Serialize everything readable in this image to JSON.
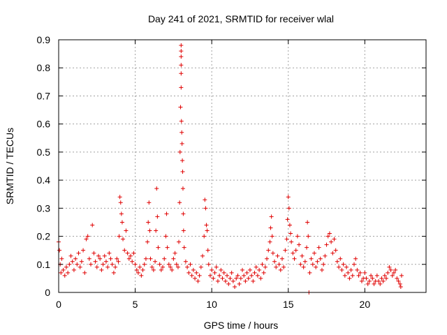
{
  "chart_data": {
    "type": "scatter",
    "title": "Day 241 of 2021, SRMTID for receiver wlal",
    "xlabel": "GPS time / hours",
    "ylabel": "SRMTID / TECUs",
    "xlim": [
      0,
      24
    ],
    "ylim": [
      0,
      0.9
    ],
    "xticks": [
      0,
      5,
      10,
      15,
      20
    ],
    "xtick_labels": [
      "0",
      "5",
      "10",
      "15",
      "20"
    ],
    "yticks": [
      0,
      0.1,
      0.2,
      0.3,
      0.4,
      0.5,
      0.6,
      0.7,
      0.8,
      0.9
    ],
    "ytick_labels": [
      "0",
      "0.1",
      "0.2",
      "0.3",
      "0.4",
      "0.5",
      "0.6",
      "0.7",
      "0.8",
      "0.9"
    ],
    "grid": true,
    "marker": "+",
    "series": [
      {
        "name": "SRMTID",
        "color": "#e00000",
        "points": [
          [
            0.0,
            0.18
          ],
          [
            0.05,
            0.15
          ],
          [
            0.1,
            0.1
          ],
          [
            0.15,
            0.07
          ],
          [
            0.2,
            0.12
          ],
          [
            0.3,
            0.08
          ],
          [
            0.4,
            0.06
          ],
          [
            0.5,
            0.09
          ],
          [
            0.6,
            0.07
          ],
          [
            0.7,
            0.1
          ],
          [
            0.8,
            0.13
          ],
          [
            0.9,
            0.11
          ],
          [
            1.0,
            0.08
          ],
          [
            1.1,
            0.12
          ],
          [
            1.2,
            0.1
          ],
          [
            1.3,
            0.14
          ],
          [
            1.4,
            0.09
          ],
          [
            1.5,
            0.11
          ],
          [
            1.6,
            0.15
          ],
          [
            1.7,
            0.07
          ],
          [
            1.8,
            0.19
          ],
          [
            1.9,
            0.2
          ],
          [
            2.0,
            0.12
          ],
          [
            2.1,
            0.1
          ],
          [
            2.2,
            0.24
          ],
          [
            2.3,
            0.14
          ],
          [
            2.4,
            0.11
          ],
          [
            2.5,
            0.09
          ],
          [
            2.6,
            0.13
          ],
          [
            2.7,
            0.12
          ],
          [
            2.8,
            0.08
          ],
          [
            2.9,
            0.1
          ],
          [
            3.0,
            0.13
          ],
          [
            3.1,
            0.11
          ],
          [
            3.2,
            0.09
          ],
          [
            3.3,
            0.14
          ],
          [
            3.4,
            0.12
          ],
          [
            3.5,
            0.1
          ],
          [
            3.6,
            0.07
          ],
          [
            3.7,
            0.09
          ],
          [
            3.8,
            0.12
          ],
          [
            3.9,
            0.11
          ],
          [
            3.95,
            0.2
          ],
          [
            4.0,
            0.34
          ],
          [
            4.05,
            0.32
          ],
          [
            4.1,
            0.28
          ],
          [
            4.15,
            0.25
          ],
          [
            4.2,
            0.19
          ],
          [
            4.3,
            0.15
          ],
          [
            4.4,
            0.22
          ],
          [
            4.5,
            0.14
          ],
          [
            4.6,
            0.12
          ],
          [
            4.7,
            0.13
          ],
          [
            4.8,
            0.11
          ],
          [
            4.9,
            0.14
          ],
          [
            5.0,
            0.1
          ],
          [
            5.1,
            0.08
          ],
          [
            5.2,
            0.07
          ],
          [
            5.3,
            0.09
          ],
          [
            5.4,
            0.06
          ],
          [
            5.5,
            0.08
          ],
          [
            5.6,
            0.1
          ],
          [
            5.7,
            0.12
          ],
          [
            5.8,
            0.18
          ],
          [
            5.85,
            0.25
          ],
          [
            5.9,
            0.32
          ],
          [
            5.95,
            0.22
          ],
          [
            6.0,
            0.12
          ],
          [
            6.1,
            0.09
          ],
          [
            6.2,
            0.08
          ],
          [
            6.3,
            0.11
          ],
          [
            6.35,
            0.22
          ],
          [
            6.4,
            0.37
          ],
          [
            6.45,
            0.27
          ],
          [
            6.5,
            0.16
          ],
          [
            6.6,
            0.1
          ],
          [
            6.7,
            0.08
          ],
          [
            6.8,
            0.09
          ],
          [
            6.9,
            0.12
          ],
          [
            7.0,
            0.2
          ],
          [
            7.05,
            0.28
          ],
          [
            7.1,
            0.16
          ],
          [
            7.2,
            0.1
          ],
          [
            7.3,
            0.09
          ],
          [
            7.4,
            0.08
          ],
          [
            7.5,
            0.12
          ],
          [
            7.6,
            0.14
          ],
          [
            7.7,
            0.1
          ],
          [
            7.8,
            0.09
          ],
          [
            7.85,
            0.18
          ],
          [
            7.9,
            0.32
          ],
          [
            7.93,
            0.5
          ],
          [
            7.96,
            0.66
          ],
          [
            8.0,
            0.73
          ],
          [
            8.0,
            0.78
          ],
          [
            8.0,
            0.81
          ],
          [
            8.0,
            0.84
          ],
          [
            8.0,
            0.86
          ],
          [
            8.0,
            0.88
          ],
          [
            8.02,
            0.61
          ],
          [
            8.04,
            0.57
          ],
          [
            8.06,
            0.53
          ],
          [
            8.08,
            0.47
          ],
          [
            8.1,
            0.43
          ],
          [
            8.12,
            0.37
          ],
          [
            8.14,
            0.28
          ],
          [
            8.16,
            0.22
          ],
          [
            8.2,
            0.16
          ],
          [
            8.3,
            0.11
          ],
          [
            8.4,
            0.09
          ],
          [
            8.5,
            0.07
          ],
          [
            8.6,
            0.1
          ],
          [
            8.7,
            0.06
          ],
          [
            8.8,
            0.08
          ],
          [
            8.9,
            0.05
          ],
          [
            9.0,
            0.07
          ],
          [
            9.1,
            0.04
          ],
          [
            9.2,
            0.06
          ],
          [
            9.3,
            0.09
          ],
          [
            9.4,
            0.13
          ],
          [
            9.5,
            0.2
          ],
          [
            9.55,
            0.33
          ],
          [
            9.6,
            0.3
          ],
          [
            9.65,
            0.24
          ],
          [
            9.7,
            0.22
          ],
          [
            9.75,
            0.15
          ],
          [
            9.8,
            0.1
          ],
          [
            9.9,
            0.06
          ],
          [
            10.0,
            0.08
          ],
          [
            10.1,
            0.05
          ],
          [
            10.2,
            0.07
          ],
          [
            10.3,
            0.09
          ],
          [
            10.4,
            0.04
          ],
          [
            10.5,
            0.06
          ],
          [
            10.6,
            0.08
          ],
          [
            10.7,
            0.05
          ],
          [
            10.8,
            0.07
          ],
          [
            10.9,
            0.04
          ],
          [
            11.0,
            0.06
          ],
          [
            11.1,
            0.03
          ],
          [
            11.2,
            0.05
          ],
          [
            11.3,
            0.07
          ],
          [
            11.4,
            0.04
          ],
          [
            11.5,
            0.02
          ],
          [
            11.6,
            0.05
          ],
          [
            11.7,
            0.06
          ],
          [
            11.8,
            0.03
          ],
          [
            11.9,
            0.05
          ],
          [
            12.0,
            0.08
          ],
          [
            12.1,
            0.06
          ],
          [
            12.2,
            0.04
          ],
          [
            12.3,
            0.07
          ],
          [
            12.4,
            0.05
          ],
          [
            12.5,
            0.08
          ],
          [
            12.6,
            0.06
          ],
          [
            12.7,
            0.04
          ],
          [
            12.8,
            0.07
          ],
          [
            12.9,
            0.09
          ],
          [
            13.0,
            0.06
          ],
          [
            13.1,
            0.08
          ],
          [
            13.2,
            0.05
          ],
          [
            13.3,
            0.1
          ],
          [
            13.4,
            0.07
          ],
          [
            13.5,
            0.09
          ],
          [
            13.6,
            0.12
          ],
          [
            13.7,
            0.15
          ],
          [
            13.8,
            0.18
          ],
          [
            13.85,
            0.23
          ],
          [
            13.9,
            0.27
          ],
          [
            13.95,
            0.2
          ],
          [
            14.0,
            0.14
          ],
          [
            14.1,
            0.11
          ],
          [
            14.2,
            0.09
          ],
          [
            14.3,
            0.13
          ],
          [
            14.4,
            0.1
          ],
          [
            14.5,
            0.08
          ],
          [
            14.6,
            0.12
          ],
          [
            14.7,
            0.09
          ],
          [
            14.8,
            0.15
          ],
          [
            14.9,
            0.19
          ],
          [
            14.95,
            0.26
          ],
          [
            15.0,
            0.34
          ],
          [
            15.05,
            0.3
          ],
          [
            15.1,
            0.24
          ],
          [
            15.15,
            0.21
          ],
          [
            15.2,
            0.18
          ],
          [
            15.3,
            0.14
          ],
          [
            15.4,
            0.12
          ],
          [
            15.5,
            0.15
          ],
          [
            15.6,
            0.2
          ],
          [
            15.7,
            0.17
          ],
          [
            15.8,
            0.1
          ],
          [
            15.9,
            0.13
          ],
          [
            16.0,
            0.09
          ],
          [
            16.1,
            0.11
          ],
          [
            16.2,
            0.16
          ],
          [
            16.25,
            0.25
          ],
          [
            16.3,
            0.2
          ],
          [
            16.35,
            0.0
          ],
          [
            16.4,
            0.07
          ],
          [
            16.5,
            0.12
          ],
          [
            16.6,
            0.1
          ],
          [
            16.7,
            0.14
          ],
          [
            16.8,
            0.09
          ],
          [
            16.9,
            0.11
          ],
          [
            17.0,
            0.16
          ],
          [
            17.1,
            0.12
          ],
          [
            17.2,
            0.08
          ],
          [
            17.3,
            0.1
          ],
          [
            17.4,
            0.13
          ],
          [
            17.5,
            0.17
          ],
          [
            17.6,
            0.2
          ],
          [
            17.7,
            0.21
          ],
          [
            17.8,
            0.18
          ],
          [
            17.9,
            0.14
          ],
          [
            18.0,
            0.19
          ],
          [
            18.1,
            0.15
          ],
          [
            18.2,
            0.11
          ],
          [
            18.3,
            0.09
          ],
          [
            18.4,
            0.12
          ],
          [
            18.5,
            0.08
          ],
          [
            18.6,
            0.1
          ],
          [
            18.7,
            0.06
          ],
          [
            18.8,
            0.09
          ],
          [
            18.9,
            0.07
          ],
          [
            19.0,
            0.05
          ],
          [
            19.1,
            0.08
          ],
          [
            19.2,
            0.06
          ],
          [
            19.3,
            0.1
          ],
          [
            19.4,
            0.12
          ],
          [
            19.5,
            0.08
          ],
          [
            19.6,
            0.06
          ],
          [
            19.7,
            0.07
          ],
          [
            19.8,
            0.04
          ],
          [
            19.9,
            0.05
          ],
          [
            20.0,
            0.07
          ],
          [
            20.1,
            0.05
          ],
          [
            20.2,
            0.03
          ],
          [
            20.3,
            0.04
          ],
          [
            20.4,
            0.06
          ],
          [
            20.5,
            0.05
          ],
          [
            20.6,
            0.03
          ],
          [
            20.7,
            0.04
          ],
          [
            20.8,
            0.06
          ],
          [
            20.9,
            0.04
          ],
          [
            21.0,
            0.03
          ],
          [
            21.1,
            0.05
          ],
          [
            21.2,
            0.04
          ],
          [
            21.3,
            0.06
          ],
          [
            21.4,
            0.05
          ],
          [
            21.5,
            0.07
          ],
          [
            21.6,
            0.09
          ],
          [
            21.7,
            0.08
          ],
          [
            21.8,
            0.06
          ],
          [
            21.9,
            0.07
          ],
          [
            22.0,
            0.08
          ],
          [
            22.1,
            0.05
          ],
          [
            22.2,
            0.04
          ],
          [
            22.3,
            0.03
          ],
          [
            22.35,
            0.02
          ],
          [
            22.4,
            0.06
          ]
        ]
      }
    ]
  }
}
